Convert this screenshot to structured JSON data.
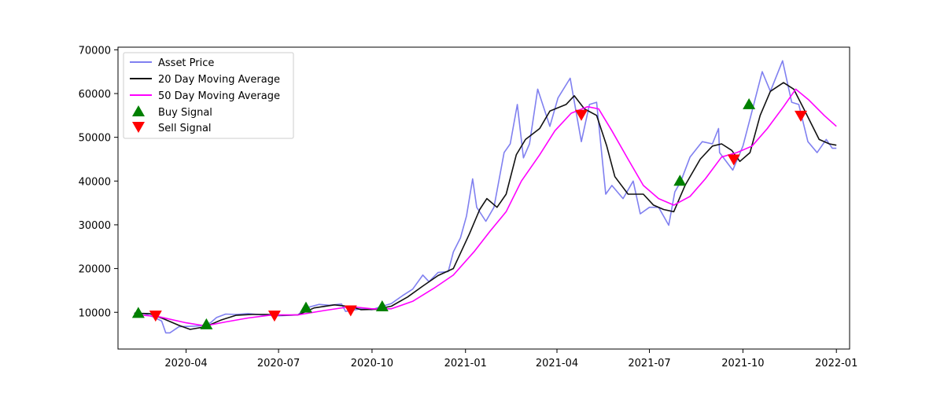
{
  "chart_data": {
    "type": "line",
    "title": "",
    "xlabel": "",
    "ylabel": "",
    "xlim": [
      "2020-01-25",
      "2022-01-14"
    ],
    "ylim": [
      1600,
      70600
    ],
    "grid": false,
    "legend_position": "top-left",
    "x_ticks": [
      {
        "date": "2020-04-01",
        "label": "2020-04"
      },
      {
        "date": "2020-07-01",
        "label": "2020-07"
      },
      {
        "date": "2020-10-01",
        "label": "2020-10"
      },
      {
        "date": "2021-01-01",
        "label": "2021-01"
      },
      {
        "date": "2021-04-01",
        "label": "2021-04"
      },
      {
        "date": "2021-07-01",
        "label": "2021-07"
      },
      {
        "date": "2021-10-01",
        "label": "2021-10"
      },
      {
        "date": "2022-01-01",
        "label": "2022-01"
      }
    ],
    "y_ticks": [
      10000,
      20000,
      30000,
      40000,
      50000,
      60000,
      70000
    ],
    "series": [
      {
        "name": "Asset Price",
        "kind": "line",
        "color": "#8080f0",
        "points": [
          [
            "2020-02-10",
            9800
          ],
          [
            "2020-02-20",
            9700
          ],
          [
            "2020-03-01",
            8800
          ],
          [
            "2020-03-08",
            8000
          ],
          [
            "2020-03-12",
            5300
          ],
          [
            "2020-03-16",
            5300
          ],
          [
            "2020-03-25",
            6700
          ],
          [
            "2020-04-05",
            6800
          ],
          [
            "2020-04-15",
            6900
          ],
          [
            "2020-04-25",
            7600
          ],
          [
            "2020-05-01",
            8800
          ],
          [
            "2020-05-10",
            9600
          ],
          [
            "2020-05-20",
            9500
          ],
          [
            "2020-06-01",
            9700
          ],
          [
            "2020-06-15",
            9400
          ],
          [
            "2020-07-01",
            9200
          ],
          [
            "2020-07-20",
            9400
          ],
          [
            "2020-07-28",
            11000
          ],
          [
            "2020-08-10",
            11800
          ],
          [
            "2020-08-20",
            11600
          ],
          [
            "2020-09-01",
            11900
          ],
          [
            "2020-09-05",
            10200
          ],
          [
            "2020-09-20",
            10800
          ],
          [
            "2020-10-01",
            10600
          ],
          [
            "2020-10-10",
            11300
          ],
          [
            "2020-10-20",
            12000
          ],
          [
            "2020-10-31",
            13800
          ],
          [
            "2020-11-10",
            15300
          ],
          [
            "2020-11-20",
            18500
          ],
          [
            "2020-11-26",
            17000
          ],
          [
            "2020-12-05",
            19100
          ],
          [
            "2020-12-15",
            19300
          ],
          [
            "2020-12-20",
            23800
          ],
          [
            "2020-12-27",
            27000
          ],
          [
            "2021-01-02",
            32000
          ],
          [
            "2021-01-08",
            40500
          ],
          [
            "2021-01-12",
            34000
          ],
          [
            "2021-01-21",
            30800
          ],
          [
            "2021-01-29",
            34000
          ],
          [
            "2021-02-08",
            46500
          ],
          [
            "2021-02-14",
            48500
          ],
          [
            "2021-02-21",
            57500
          ],
          [
            "2021-02-27",
            45300
          ],
          [
            "2021-03-05",
            48500
          ],
          [
            "2021-03-13",
            61000
          ],
          [
            "2021-03-25",
            52500
          ],
          [
            "2021-04-02",
            59000
          ],
          [
            "2021-04-14",
            63500
          ],
          [
            "2021-04-25",
            49000
          ],
          [
            "2021-05-03",
            57500
          ],
          [
            "2021-05-10",
            58000
          ],
          [
            "2021-05-19",
            37000
          ],
          [
            "2021-05-25",
            39000
          ],
          [
            "2021-06-05",
            36000
          ],
          [
            "2021-06-15",
            40000
          ],
          [
            "2021-06-22",
            32500
          ],
          [
            "2021-07-01",
            34000
          ],
          [
            "2021-07-10",
            34000
          ],
          [
            "2021-07-20",
            29900
          ],
          [
            "2021-07-26",
            37500
          ],
          [
            "2021-08-01",
            40000
          ],
          [
            "2021-08-10",
            45500
          ],
          [
            "2021-08-22",
            49000
          ],
          [
            "2021-09-01",
            48500
          ],
          [
            "2021-09-07",
            52000
          ],
          [
            "2021-09-08",
            46500
          ],
          [
            "2021-09-21",
            42500
          ],
          [
            "2021-10-01",
            48000
          ],
          [
            "2021-10-10",
            56000
          ],
          [
            "2021-10-20",
            65000
          ],
          [
            "2021-10-28",
            60500
          ],
          [
            "2021-11-09",
            67500
          ],
          [
            "2021-11-18",
            58000
          ],
          [
            "2021-11-25",
            57500
          ],
          [
            "2021-12-04",
            49000
          ],
          [
            "2021-12-13",
            46500
          ],
          [
            "2021-12-22",
            49500
          ],
          [
            "2021-12-28",
            47500
          ],
          [
            "2022-01-01",
            47500
          ]
        ]
      },
      {
        "name": "20 Day Moving Average",
        "kind": "line",
        "color": "#111111",
        "points": [
          [
            "2020-02-10",
            9800
          ],
          [
            "2020-02-25",
            9700
          ],
          [
            "2020-03-10",
            8500
          ],
          [
            "2020-03-25",
            7000
          ],
          [
            "2020-04-05",
            6100
          ],
          [
            "2020-04-20",
            6700
          ],
          [
            "2020-05-05",
            8200
          ],
          [
            "2020-05-20",
            9300
          ],
          [
            "2020-06-05",
            9500
          ],
          [
            "2020-06-20",
            9500
          ],
          [
            "2020-07-05",
            9300
          ],
          [
            "2020-07-20",
            9400
          ],
          [
            "2020-08-05",
            11000
          ],
          [
            "2020-08-25",
            11700
          ],
          [
            "2020-09-10",
            11300
          ],
          [
            "2020-09-20",
            10600
          ],
          [
            "2020-10-05",
            10700
          ],
          [
            "2020-10-20",
            11400
          ],
          [
            "2020-11-05",
            13500
          ],
          [
            "2020-11-20",
            16000
          ],
          [
            "2020-12-05",
            18400
          ],
          [
            "2020-12-20",
            20000
          ],
          [
            "2021-01-05",
            28000
          ],
          [
            "2021-01-15",
            33500
          ],
          [
            "2021-01-22",
            36000
          ],
          [
            "2021-02-01",
            34000
          ],
          [
            "2021-02-10",
            37000
          ],
          [
            "2021-02-20",
            46000
          ],
          [
            "2021-03-01",
            49500
          ],
          [
            "2021-03-15",
            52000
          ],
          [
            "2021-03-25",
            56000
          ],
          [
            "2021-04-10",
            57500
          ],
          [
            "2021-04-18",
            59500
          ],
          [
            "2021-04-28",
            56500
          ],
          [
            "2021-05-10",
            55000
          ],
          [
            "2021-05-20",
            48000
          ],
          [
            "2021-05-28",
            41000
          ],
          [
            "2021-06-10",
            37000
          ],
          [
            "2021-06-25",
            37000
          ],
          [
            "2021-07-05",
            34500
          ],
          [
            "2021-07-15",
            33500
          ],
          [
            "2021-07-25",
            33000
          ],
          [
            "2021-08-05",
            39000
          ],
          [
            "2021-08-20",
            45000
          ],
          [
            "2021-09-01",
            48000
          ],
          [
            "2021-09-10",
            48500
          ],
          [
            "2021-09-20",
            47000
          ],
          [
            "2021-09-28",
            44500
          ],
          [
            "2021-10-08",
            46500
          ],
          [
            "2021-10-18",
            55000
          ],
          [
            "2021-10-28",
            60500
          ],
          [
            "2021-11-10",
            62500
          ],
          [
            "2021-11-20",
            61000
          ],
          [
            "2021-12-01",
            56000
          ],
          [
            "2021-12-15",
            49500
          ],
          [
            "2021-12-25",
            48500
          ],
          [
            "2022-01-01",
            48200
          ]
        ]
      },
      {
        "name": "50 Day Moving Average",
        "kind": "line",
        "color": "#ff00ff",
        "points": [
          [
            "2020-02-10",
            9500
          ],
          [
            "2020-03-05",
            9000
          ],
          [
            "2020-04-01",
            7600
          ],
          [
            "2020-04-20",
            6900
          ],
          [
            "2020-05-10",
            7800
          ],
          [
            "2020-06-01",
            8700
          ],
          [
            "2020-06-25",
            9400
          ],
          [
            "2020-07-20",
            9400
          ],
          [
            "2020-08-15",
            10400
          ],
          [
            "2020-09-10",
            11300
          ],
          [
            "2020-10-01",
            10800
          ],
          [
            "2020-10-20",
            10800
          ],
          [
            "2020-11-10",
            12500
          ],
          [
            "2020-12-01",
            15500
          ],
          [
            "2020-12-20",
            18500
          ],
          [
            "2021-01-10",
            24000
          ],
          [
            "2021-01-25",
            28500
          ],
          [
            "2021-02-10",
            33000
          ],
          [
            "2021-02-25",
            40000
          ],
          [
            "2021-03-15",
            46000
          ],
          [
            "2021-03-30",
            51500
          ],
          [
            "2021-04-15",
            55500
          ],
          [
            "2021-05-01",
            57000
          ],
          [
            "2021-05-12",
            56500
          ],
          [
            "2021-05-25",
            51500
          ],
          [
            "2021-06-10",
            45000
          ],
          [
            "2021-06-25",
            39000
          ],
          [
            "2021-07-10",
            36000
          ],
          [
            "2021-07-25",
            34500
          ],
          [
            "2021-08-10",
            36500
          ],
          [
            "2021-08-25",
            40500
          ],
          [
            "2021-09-10",
            45500
          ],
          [
            "2021-09-25",
            46500
          ],
          [
            "2021-10-10",
            48000
          ],
          [
            "2021-10-25",
            52000
          ],
          [
            "2021-11-10",
            57000
          ],
          [
            "2021-11-22",
            61000
          ],
          [
            "2021-12-05",
            58500
          ],
          [
            "2021-12-20",
            55000
          ],
          [
            "2022-01-01",
            52500
          ]
        ]
      },
      {
        "name": "Buy Signal",
        "kind": "marker",
        "marker": "triangle-up",
        "color": "#008000",
        "points": [
          [
            "2020-02-14",
            9800
          ],
          [
            "2020-04-21",
            7200
          ],
          [
            "2020-07-28",
            11000
          ],
          [
            "2020-10-11",
            11300
          ],
          [
            "2021-07-31",
            40000
          ],
          [
            "2021-10-07",
            57500
          ]
        ]
      },
      {
        "name": "Sell Signal",
        "kind": "marker",
        "marker": "triangle-down",
        "color": "#ff0000",
        "points": [
          [
            "2020-03-02",
            9300
          ],
          [
            "2020-06-27",
            9300
          ],
          [
            "2020-09-10",
            10500
          ],
          [
            "2021-04-25",
            55200
          ],
          [
            "2021-09-22",
            45000
          ],
          [
            "2021-11-27",
            55000
          ]
        ]
      }
    ]
  }
}
